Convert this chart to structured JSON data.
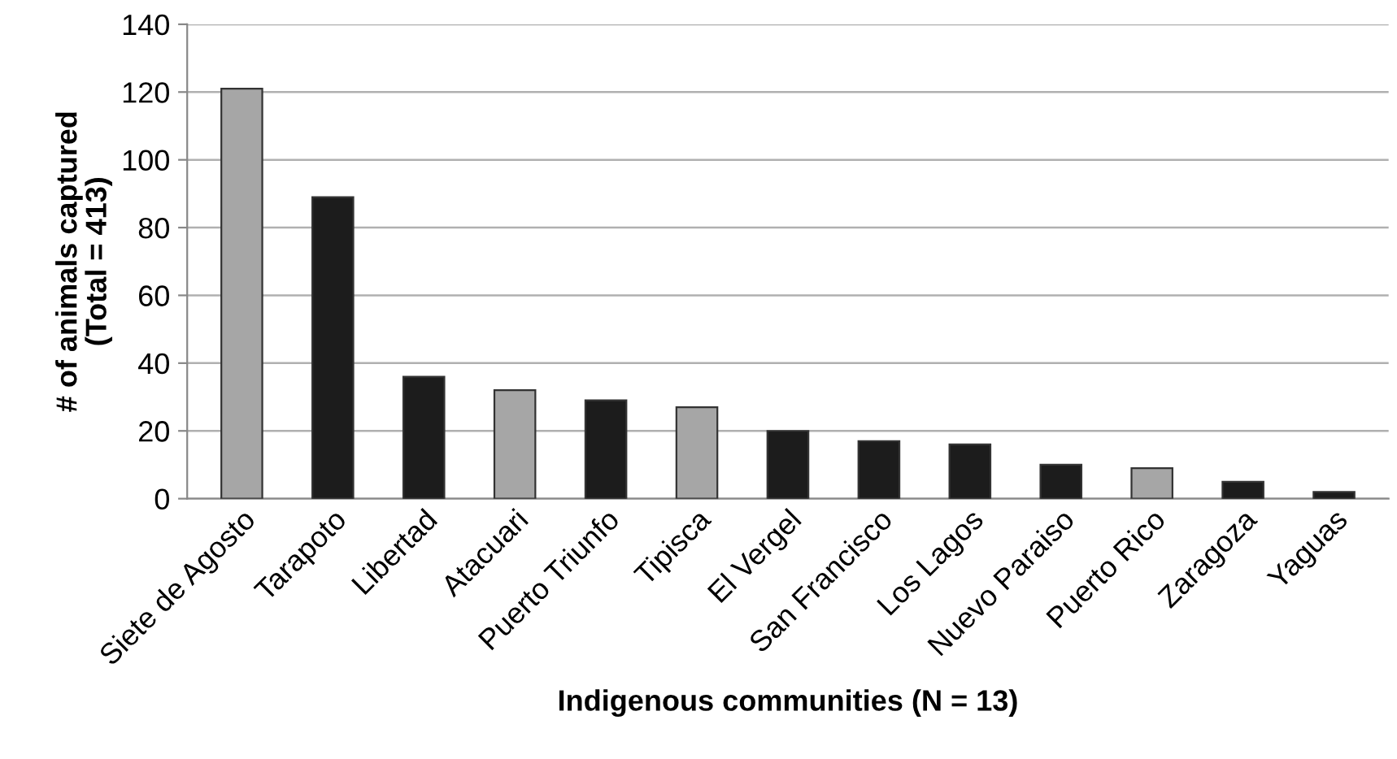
{
  "chart_data": {
    "type": "bar",
    "xlabel": "Indigenous communities (N = 13)",
    "ylabel": "# of animals captured\n(Total = 413)",
    "categories": [
      "Siete de Agosto",
      "Tarapoto",
      "Libertad",
      "Atacuari",
      "Puerto Triunfo",
      "Tipisca",
      "El Vergel",
      "San Francisco",
      "Los Lagos",
      "Nuevo Paraiso",
      "Puerto Rico",
      "Zaragoza",
      "Yaguas"
    ],
    "values": [
      121,
      89,
      36,
      32,
      29,
      27,
      20,
      17,
      16,
      10,
      9,
      5,
      2
    ],
    "colors": [
      "#a6a6a6",
      "#1c1c1c",
      "#1c1c1c",
      "#a6a6a6",
      "#1c1c1c",
      "#a6a6a6",
      "#1c1c1c",
      "#1c1c1c",
      "#1c1c1c",
      "#1c1c1c",
      "#a6a6a6",
      "#1c1c1c",
      "#1c1c1c"
    ],
    "ylim": [
      0,
      140
    ],
    "yticks": [
      0,
      20,
      40,
      60,
      80,
      100,
      120,
      140
    ],
    "grid": "y",
    "legend": false
  }
}
